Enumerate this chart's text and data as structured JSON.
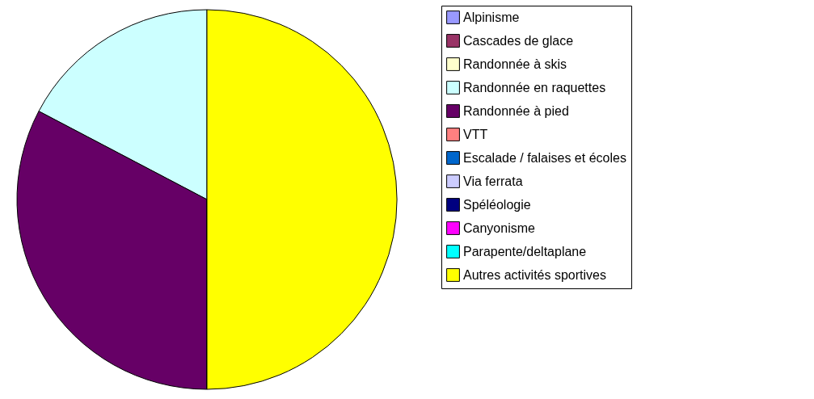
{
  "chart_data": {
    "type": "pie",
    "legend": "right",
    "categories": [
      "Alpinisme",
      "Cascades de glace",
      "Randonnée à skis",
      "Randonnée en raquettes",
      "Randonnée à pied",
      "VTT",
      "Escalade / falaises et écoles",
      "Via ferrata",
      "Spéléologie",
      "Canyonisme",
      "Parapente/deltaplane",
      "Autres activités sportives"
    ],
    "values": [
      0,
      0,
      0,
      17.3,
      32.7,
      0,
      0,
      0,
      0,
      0,
      0,
      50
    ],
    "colors": [
      "#9999ff",
      "#993366",
      "#ffffcc",
      "#ccffff",
      "#660066",
      "#ff8080",
      "#0066cc",
      "#ccccff",
      "#000080",
      "#ff00ff",
      "#00ffff",
      "#ffff00"
    ]
  }
}
